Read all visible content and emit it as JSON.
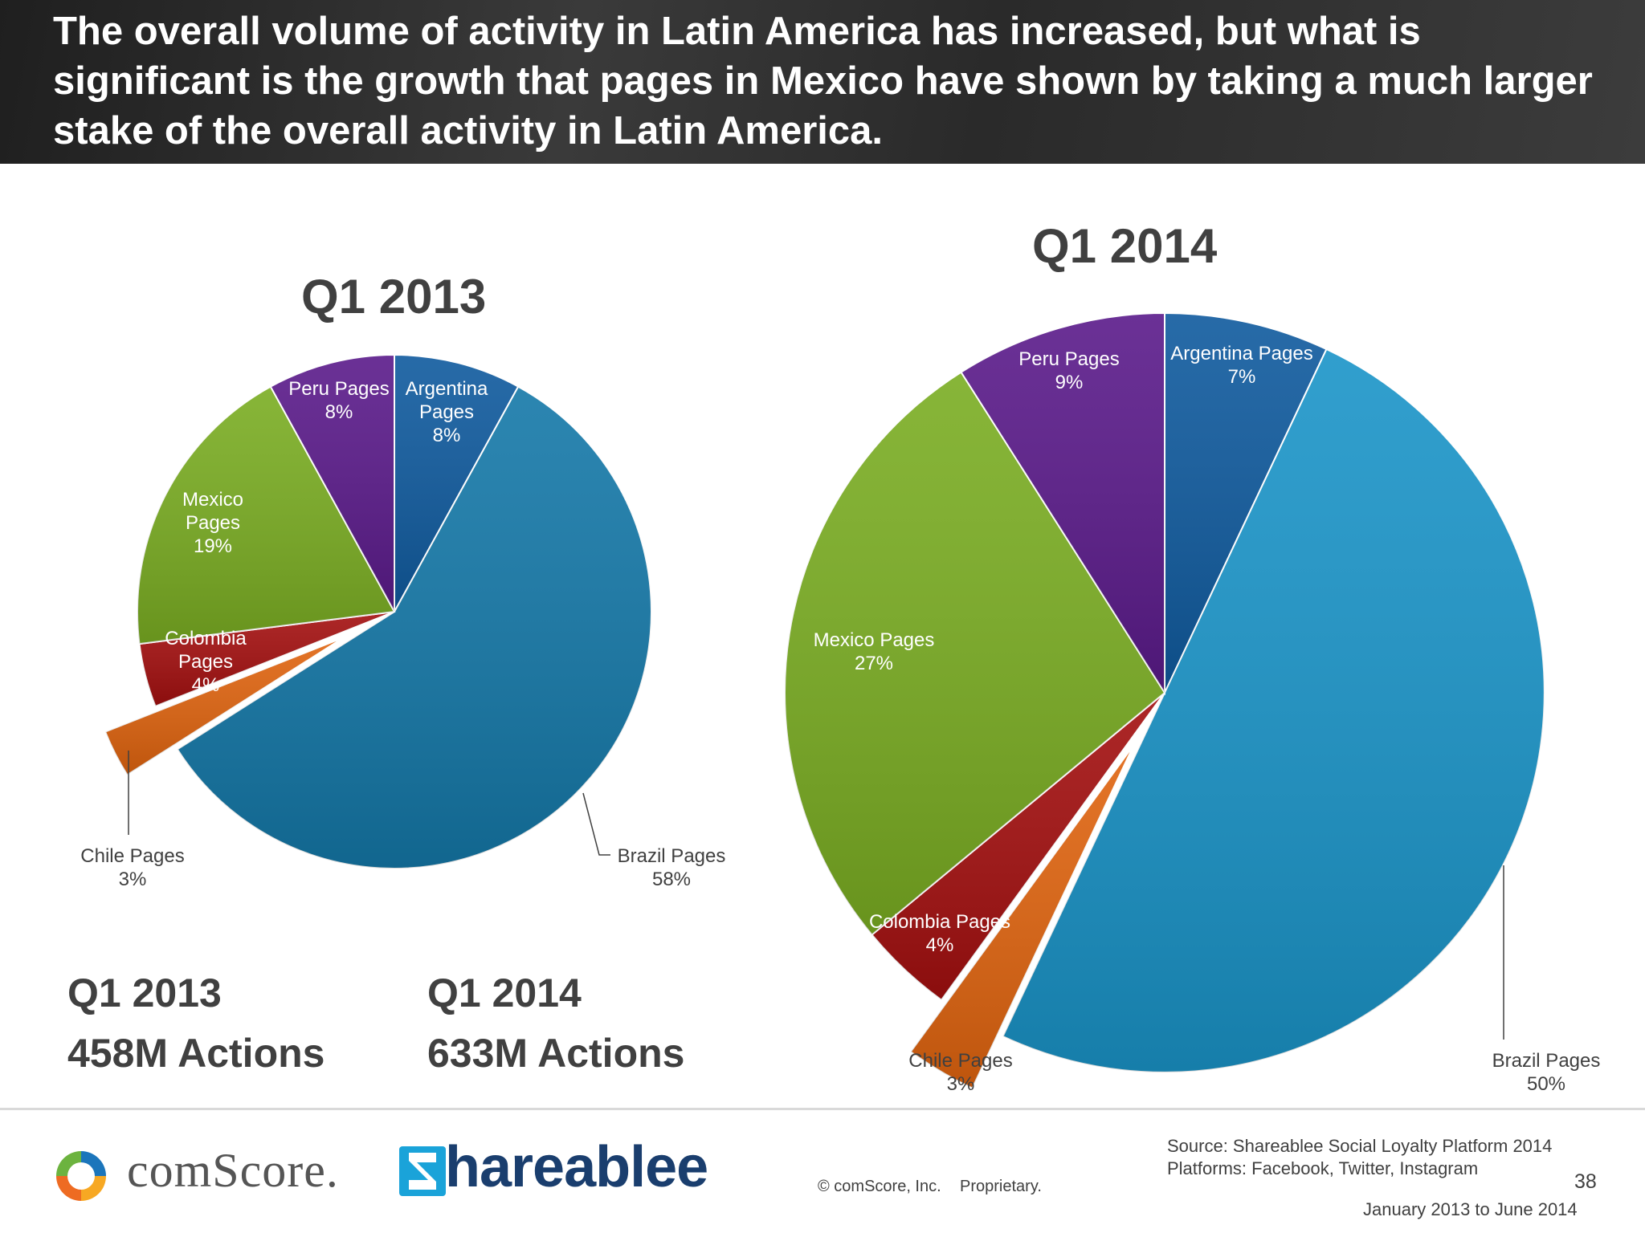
{
  "header": {
    "title": "The overall volume of activity in Latin America has increased, but what is significant is the growth that pages in Mexico have shown by taking a much larger stake of the overall activity in Latin America."
  },
  "chart_data": [
    {
      "type": "pie",
      "title": "Q1 2013",
      "slices": [
        {
          "label": "Argentina Pages",
          "value": 8,
          "display": "8%",
          "color": "#0f5a9e"
        },
        {
          "label": "Brazil Pages",
          "value": 58,
          "display": "58%",
          "color": "#1478a8"
        },
        {
          "label": "Chile Pages",
          "value": 3,
          "display": "3%",
          "color": "#e0640f",
          "exploded": true
        },
        {
          "label": "Colombia Pages",
          "value": 4,
          "display": "4%",
          "color": "#a30f0f"
        },
        {
          "label": "Mexico Pages",
          "value": 19,
          "display": "19%",
          "color": "#7aad22"
        },
        {
          "label": "Peru Pages",
          "value": 8,
          "display": "8%",
          "color": "#5a1a8a"
        }
      ]
    },
    {
      "type": "pie",
      "title": "Q1 2014",
      "slices": [
        {
          "label": "Argentina Pages",
          "value": 7,
          "display": "7%",
          "color": "#0f5a9e"
        },
        {
          "label": "Brazil Pages",
          "value": 50,
          "display": "50%",
          "color": "#1a94c8"
        },
        {
          "label": "Chile Pages",
          "value": 3,
          "display": "3%",
          "color": "#e0640f",
          "exploded": true
        },
        {
          "label": "Colombia Pages",
          "value": 4,
          "display": "4%",
          "color": "#a30f0f"
        },
        {
          "label": "Mexico Pages",
          "value": 27,
          "display": "27%",
          "color": "#7aad22"
        },
        {
          "label": "Peru Pages",
          "value": 9,
          "display": "9%",
          "color": "#5a1a8a"
        }
      ]
    }
  ],
  "stats": {
    "q2013_label": "Q1 2013",
    "q2013_value": "458M Actions",
    "q2014_label": "Q1 2014",
    "q2014_value": "633M Actions"
  },
  "footer": {
    "comscore_logo": "comScore.",
    "shareablee_logo": "hareablee",
    "copyright": "© comScore, Inc.",
    "proprietary": "Proprietary.",
    "source": "Source: Shareablee Social Loyalty Platform 2014",
    "platforms": "Platforms: Facebook, Twitter, Instagram",
    "date_range": "January 2013 to June 2014",
    "page_number": "38"
  }
}
